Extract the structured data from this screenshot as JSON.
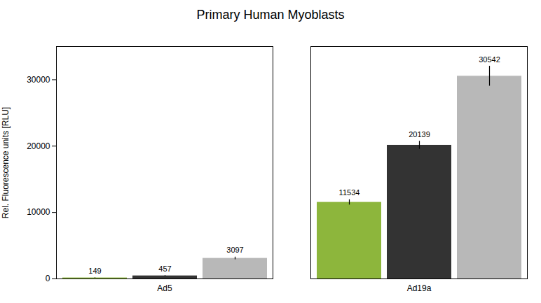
{
  "chart_data": {
    "type": "bar",
    "title": "Primary Human Myoblasts",
    "ylabel": "Rel. Fluorescence units [RLU]",
    "categories": [
      "Ad5",
      "Ad19a"
    ],
    "series": [
      {
        "color": "#8db63c",
        "values": [
          149,
          11534
        ],
        "errors": [
          30,
          400
        ]
      },
      {
        "color": "#333333",
        "values": [
          457,
          20139
        ],
        "errors": [
          50,
          600
        ]
      },
      {
        "color": "#b8b8b8",
        "values": [
          3097,
          30542
        ],
        "errors": [
          200,
          1500
        ]
      }
    ],
    "ylim": [
      0,
      35000
    ],
    "yticks": [
      0,
      10000,
      20000,
      30000
    ],
    "grid": false,
    "data_labels": true
  }
}
